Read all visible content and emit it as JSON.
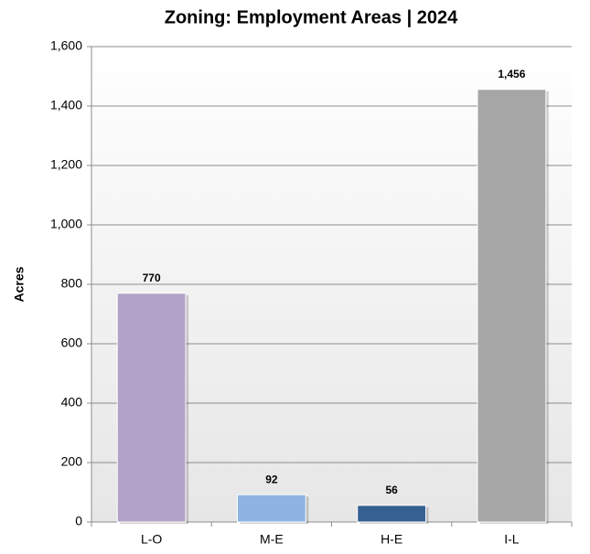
{
  "chart_data": {
    "type": "bar",
    "title": "Zoning: Employment Areas | 2024",
    "y_label": "Acres",
    "categories": [
      "L-O",
      "M-E",
      "H-E",
      "I-L"
    ],
    "values": [
      770,
      92,
      56,
      1456
    ],
    "value_labels": [
      "770",
      "92",
      "56",
      "1,456"
    ],
    "colors": [
      "#b3a2c7",
      "#8db4e2",
      "#366092",
      "#a6a6a6"
    ],
    "ylim": [
      0,
      1600
    ],
    "yticks": [
      0,
      200,
      400,
      600,
      800,
      {
        "value": 1000,
        "label": "1,000"
      },
      {
        "value": 1200,
        "label": "1,200"
      },
      {
        "value": 1400,
        "label": "1,400"
      },
      {
        "value": 1600,
        "label": "1,600"
      }
    ],
    "grid": true
  }
}
